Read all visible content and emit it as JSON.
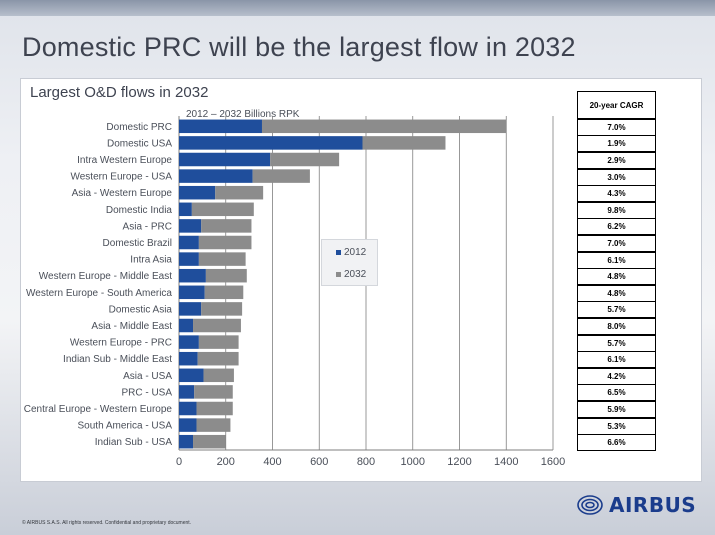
{
  "slide": {
    "title": "Domestic PRC will be the largest flow in 2032",
    "copyright": "© AIRBUS S.A.S. All rights reserved. Confidential and proprietary document.",
    "logo_text": "AIRBUS"
  },
  "chart_data": {
    "type": "bar",
    "orientation": "horizontal",
    "stacked": true,
    "title": "Largest O&D flows in 2032",
    "unit_label": "2012 – 2032 Billions RPK",
    "categories": [
      "Domestic PRC",
      "Domestic USA",
      "Intra Western Europe",
      "Western Europe - USA",
      "Asia - Western Europe",
      "Domestic India",
      "Asia - PRC",
      "Domestic Brazil",
      "Intra Asia",
      "Western Europe - Middle East",
      "Western Europe - South America",
      "Domestic Asia",
      "Asia - Middle East",
      "Western Europe - PRC",
      "Indian Sub - Middle East",
      "Asia - USA",
      "PRC - USA",
      "Central Europe - Western Europe",
      "South America - USA",
      "Indian Sub - USA"
    ],
    "series": [
      {
        "name": "2012",
        "color": "#1f4e9c",
        "values": [
          355,
          785,
          390,
          315,
          155,
          55,
          95,
          85,
          85,
          115,
          110,
          95,
          60,
          85,
          80,
          105,
          65,
          75,
          75,
          60
        ]
      },
      {
        "name": "2032",
        "color": "#8c8c8c",
        "values": [
          1045,
          355,
          295,
          245,
          205,
          265,
          215,
          225,
          200,
          175,
          165,
          175,
          205,
          170,
          175,
          130,
          165,
          155,
          145,
          140
        ]
      }
    ],
    "x_ticks": [
      "0",
      "200",
      "400",
      "600",
      "800",
      "1000",
      "1200",
      "1400",
      "1600"
    ],
    "xlim": [
      0,
      1600
    ],
    "grid": true,
    "legend": "center",
    "cagr": {
      "header": "20-year CAGR",
      "values": [
        "7.0%",
        "1.9%",
        "2.9%",
        "3.0%",
        "4.3%",
        "9.8%",
        "6.2%",
        "7.0%",
        "6.1%",
        "4.8%",
        "4.8%",
        "5.7%",
        "8.0%",
        "5.7%",
        "6.1%",
        "4.2%",
        "6.5%",
        "5.9%",
        "5.3%",
        "6.6%"
      ]
    }
  }
}
